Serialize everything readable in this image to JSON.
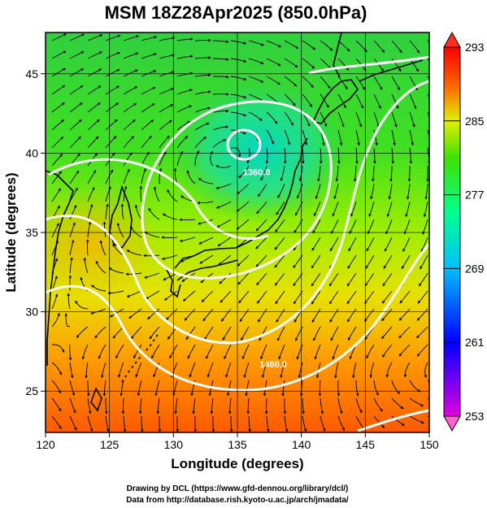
{
  "title": "MSM 18Z28Apr2025 (850.0hPa)",
  "xlabel": "Longitude (degrees)",
  "ylabel": "Latitude  (degrees)",
  "xlim": [
    120,
    150
  ],
  "ylim": [
    22.4,
    47.6
  ],
  "xticks": [
    "120",
    "125",
    "130",
    "135",
    "140",
    "145",
    "150"
  ],
  "yticks": [
    "25",
    "30",
    "35",
    "40",
    "45"
  ],
  "colorbar": {
    "range": [
      253,
      293
    ],
    "ticks": [
      "253",
      "261",
      "269",
      "277",
      "285",
      "293"
    ],
    "stops": [
      "#e000e0",
      "#0000ff",
      "#00bfff",
      "#00ff90",
      "#40e000",
      "#e0f000",
      "#ff6000",
      "#ff0000"
    ]
  },
  "contour_labels": [
    {
      "text": "1360.0",
      "lon": 136.5,
      "lat": 38.6
    },
    {
      "text": "1480.0",
      "lon": 137.8,
      "lat": 26.5
    }
  ],
  "credits": [
    "Drawing by DCL (https://www.gfd-dennou.org/library/dcl/)",
    "Data from http://database.rish.kyoto-u.ac.jp/arch/jmadata/"
  ]
}
